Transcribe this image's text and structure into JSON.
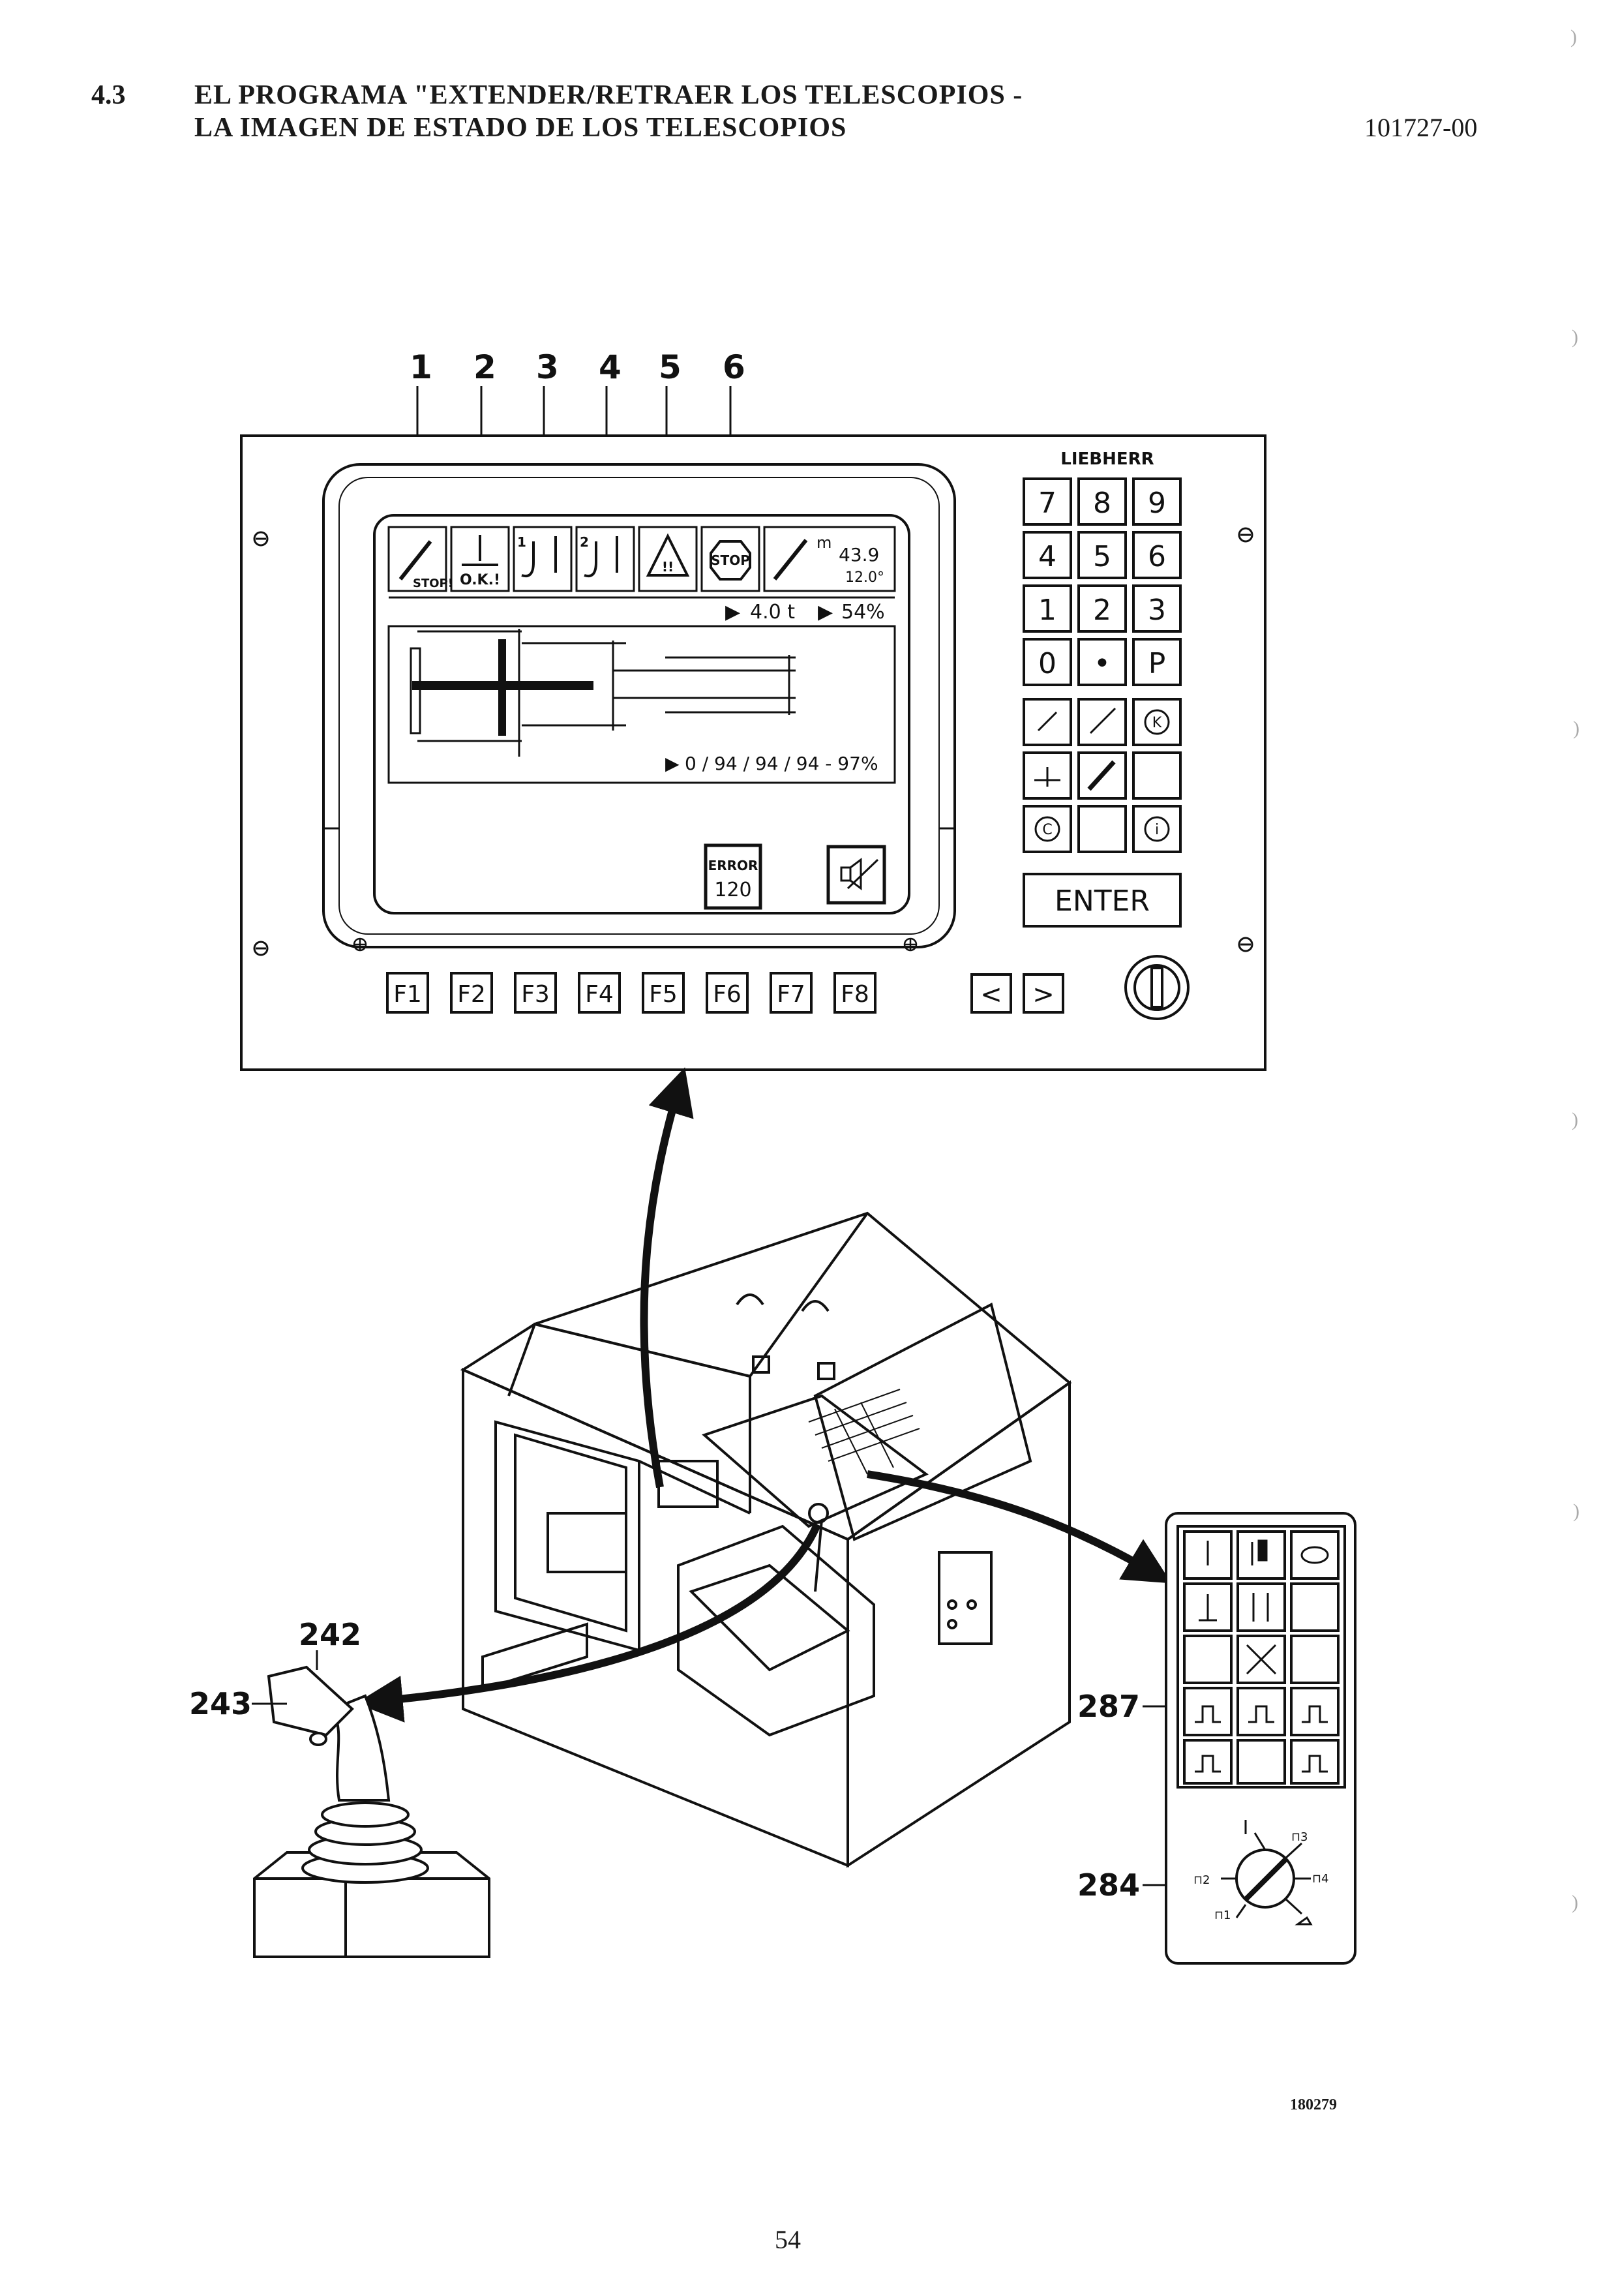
{
  "header": {
    "section_number": "4.3",
    "title_line1": "EL PROGRAMA \"EXTENDER/RETRAER LOS TELESCOPIOS -",
    "title_line2": "LA IMAGEN DE ESTADO DE LOS TELESCOPIOS",
    "doc_code": "101727-00"
  },
  "callouts_top": [
    "1",
    "2",
    "3",
    "4",
    "5",
    "6"
  ],
  "display": {
    "brand": "LIEBHERR",
    "icons": [
      {
        "name": "telescope-stop-icon",
        "label": "STOP!"
      },
      {
        "name": "telescope-ok-icon",
        "label": "O.K.!"
      },
      {
        "name": "hook1-icon",
        "label": "1"
      },
      {
        "name": "hook2-icon",
        "label": "2"
      },
      {
        "name": "warning-icon",
        "label": "!!"
      },
      {
        "name": "stop-sign-icon",
        "label": "STOP"
      }
    ],
    "radius_unit": "m",
    "radius_value": "43.9",
    "angle_value": "12.0°",
    "load_value": "4.0 t",
    "load_percent": "54%",
    "telescope_status": "0 / 94 / 94 / 94 - 97%",
    "error_label": "ERROR",
    "error_code": "120",
    "keypad": [
      "7",
      "8",
      "9",
      "4",
      "5",
      "6",
      "1",
      "2",
      "3",
      "0",
      "•",
      "P"
    ],
    "enter_label": "ENTER",
    "function_keys": [
      "F1",
      "F2",
      "F3",
      "F4",
      "F5",
      "F6",
      "F7",
      "F8"
    ],
    "nav_keys": [
      "<",
      ">"
    ],
    "special_keys": [
      "K",
      "C",
      "i"
    ]
  },
  "callouts_side": {
    "joystick_top": "242",
    "joystick_side": "243",
    "panel_button": "287",
    "panel_switch": "284"
  },
  "side_panel": {
    "switch_positions": [
      "1",
      "2",
      "3",
      "4"
    ]
  },
  "figure_ref": "180279",
  "page_number": "54"
}
